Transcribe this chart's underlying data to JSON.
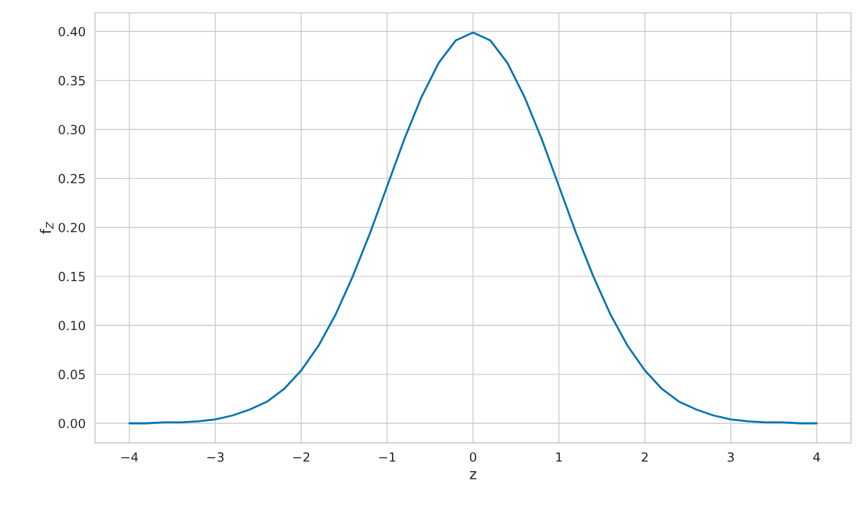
{
  "chart_data": {
    "type": "line",
    "xlabel": "z",
    "ylabel": "f$_{Z}$",
    "x": [
      -4.0,
      -3.8,
      -3.6,
      -3.4,
      -3.2,
      -3.0,
      -2.8,
      -2.6,
      -2.4,
      -2.2,
      -2.0,
      -1.8,
      -1.6,
      -1.4,
      -1.2,
      -1.0,
      -0.8,
      -0.6,
      -0.4,
      -0.2,
      0.0,
      0.2,
      0.4,
      0.6,
      0.8,
      1.0,
      1.2,
      1.4,
      1.6,
      1.8,
      2.0,
      2.2,
      2.4,
      2.6,
      2.8,
      3.0,
      3.2,
      3.4,
      3.6,
      3.8,
      4.0
    ],
    "series": [
      {
        "color": "#0173b2",
        "values": [
          0.0,
          0.0,
          0.001,
          0.001,
          0.002,
          0.004,
          0.008,
          0.014,
          0.022,
          0.035,
          0.054,
          0.079,
          0.111,
          0.15,
          0.194,
          0.242,
          0.29,
          0.333,
          0.368,
          0.391,
          0.399,
          0.391,
          0.368,
          0.333,
          0.29,
          0.242,
          0.194,
          0.15,
          0.111,
          0.079,
          0.054,
          0.035,
          0.022,
          0.014,
          0.008,
          0.004,
          0.002,
          0.001,
          0.001,
          0.0,
          0.0
        ]
      }
    ],
    "xlim": [
      -4.4,
      4.4
    ],
    "ylim": [
      -0.02,
      0.419
    ],
    "xticks": [
      {
        "value": -4,
        "label": "−4"
      },
      {
        "value": -3,
        "label": "−3"
      },
      {
        "value": -2,
        "label": "−2"
      },
      {
        "value": -1,
        "label": "−1"
      },
      0,
      1,
      2,
      3,
      4
    ],
    "yticks": [
      {
        "value": 0,
        "label": "0.00"
      },
      {
        "value": 0.05,
        "label": "0.05"
      },
      {
        "value": 0.1,
        "label": "0.10"
      },
      {
        "value": 0.15,
        "label": "0.15"
      },
      {
        "value": 0.2,
        "label": "0.20"
      },
      {
        "value": 0.25,
        "label": "0.25"
      },
      {
        "value": 0.3,
        "label": "0.30"
      },
      {
        "value": 0.35,
        "label": "0.35"
      },
      {
        "value": 0.4,
        "label": "0.40"
      }
    ],
    "grid": true,
    "line_style": "solid"
  }
}
